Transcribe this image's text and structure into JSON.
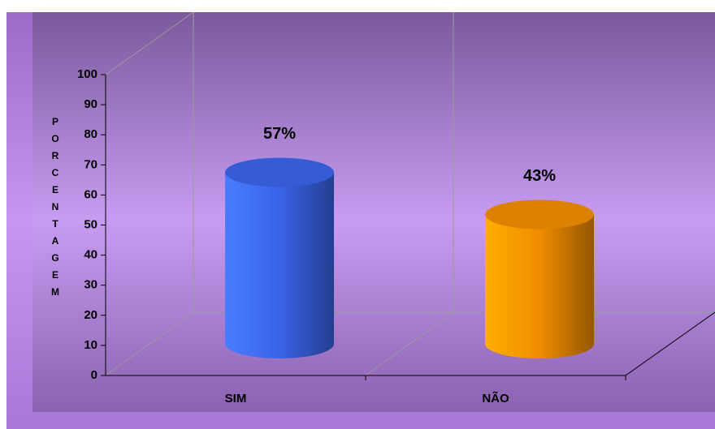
{
  "chart_data": {
    "type": "bar3d",
    "y_axis_label": "PORCENTAGEM",
    "categories": [
      "SIM",
      "NÃO"
    ],
    "values": [
      57,
      43
    ],
    "value_labels": [
      "57%",
      "43%"
    ],
    "colors": [
      "#3a64e8",
      "#f08c00"
    ],
    "ylim": [
      0,
      100
    ],
    "yticks": [
      0,
      10,
      20,
      30,
      40,
      50,
      60,
      70,
      80,
      90,
      100
    ],
    "grid": false
  }
}
